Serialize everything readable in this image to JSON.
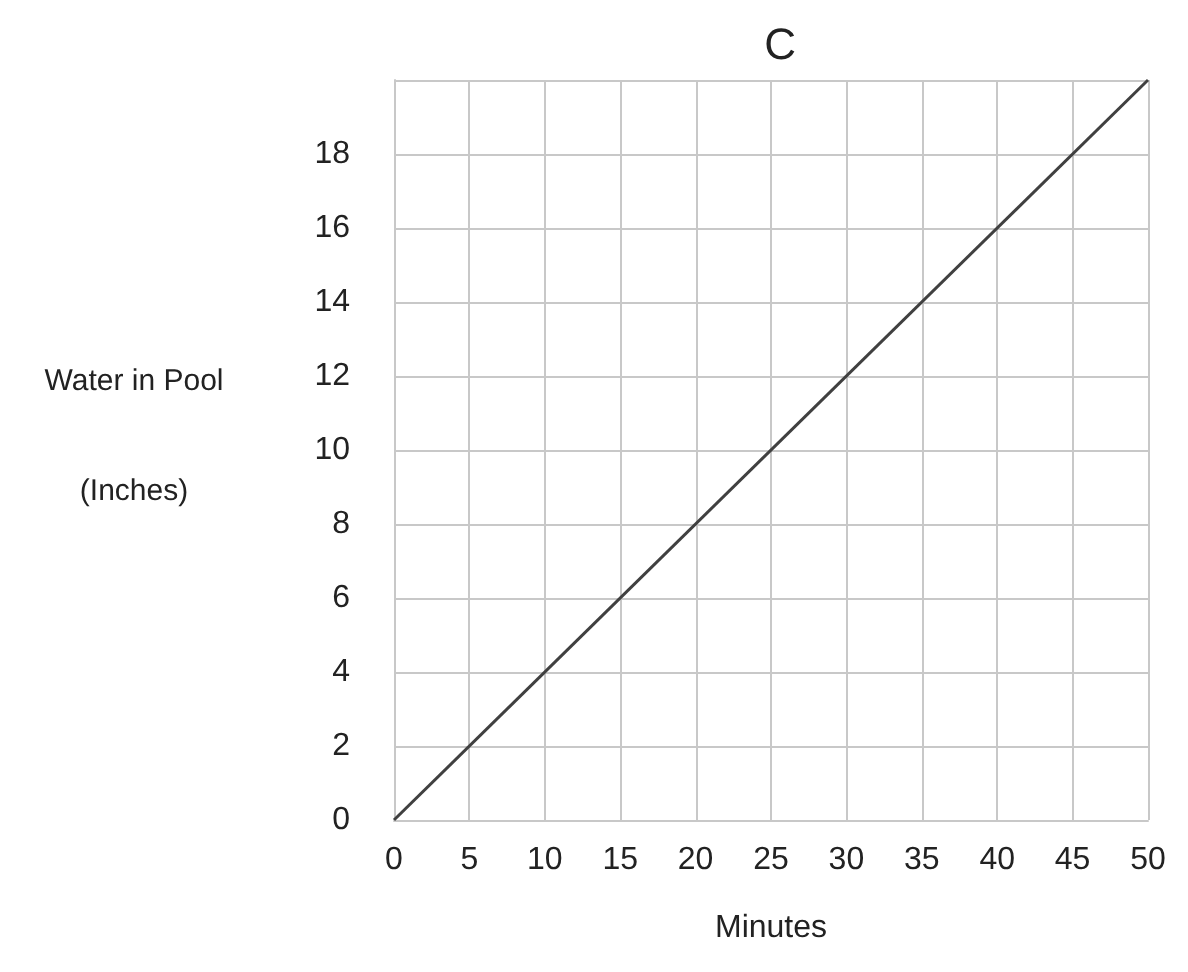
{
  "chart_data": {
    "type": "line",
    "title": "C",
    "xlabel": "Minutes",
    "ylabel": "Water in Pool\n(Inches)",
    "x": [
      0,
      50
    ],
    "series": [
      {
        "color": "#404040",
        "values": [
          0,
          20
        ]
      }
    ],
    "xlim": [
      0,
      50
    ],
    "xticks": [
      0,
      5,
      10,
      15,
      20,
      25,
      30,
      35,
      40,
      45,
      50
    ],
    "ylim": [
      0,
      20
    ],
    "yticks": [
      0,
      2,
      4,
      6,
      8,
      10,
      12,
      14,
      16,
      18
    ],
    "grid": true,
    "marker": "none",
    "line_style": "solid"
  }
}
